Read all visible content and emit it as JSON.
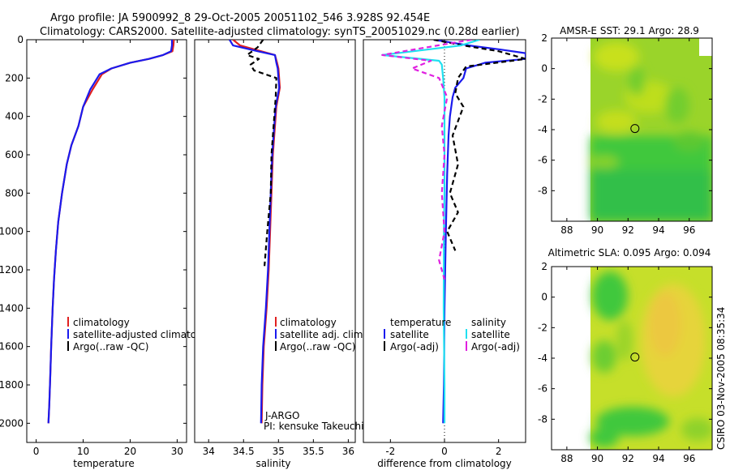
{
  "header": {
    "line1": "Argo profile: JA 5900992_8 29-Oct-2005 20051102_546 3.928S 92.454E",
    "line2": "Climatology: CARS2000. Satellite-adjusted climatology: synTS_20051029.nc (0.28d earlier)"
  },
  "side_label": "CSIRO 03-Nov-2005 08:35:34",
  "colors": {
    "red": "#e02020",
    "blue": "#1a1aee",
    "black": "#000000",
    "cyan": "#20e0f0",
    "magenta": "#e020e0"
  },
  "chart_data": [
    {
      "id": "temperature",
      "type": "line",
      "xlabel": "temperature",
      "xlim": [
        -2,
        32
      ],
      "ylim": [
        2100,
        0
      ],
      "xticks": [
        0,
        10,
        20,
        30
      ],
      "yticks": [
        0,
        200,
        400,
        600,
        800,
        1000,
        1200,
        1400,
        1600,
        1800,
        2000
      ],
      "legend": [
        "climatology",
        "satellite-adjusted climatology",
        "Argo(..raw -QC)"
      ],
      "series": [
        {
          "name": "climatology",
          "color": "red",
          "dash": "",
          "x": [
            29.3,
            29.2,
            29.0,
            27,
            24,
            20,
            16,
            14,
            13,
            12,
            10,
            9,
            7.5,
            6.5,
            5.5,
            4.7,
            4.2,
            3.8,
            3.5,
            3.2,
            3.0,
            2.8,
            2.6
          ],
          "y": [
            0,
            30,
            60,
            80,
            100,
            120,
            150,
            180,
            220,
            260,
            350,
            450,
            550,
            650,
            800,
            950,
            1100,
            1250,
            1400,
            1600,
            1750,
            1900,
            2000
          ]
        },
        {
          "name": "satellite-adjusted climatology",
          "color": "blue",
          "dash": "",
          "x": [
            28.9,
            28.9,
            28.7,
            27,
            24,
            20,
            16,
            13.5,
            12.5,
            11.5,
            10,
            9,
            7.5,
            6.5,
            5.5,
            4.7,
            4.2,
            3.8,
            3.5,
            3.2,
            3.0,
            2.8,
            2.6
          ],
          "y": [
            0,
            30,
            60,
            80,
            100,
            120,
            150,
            180,
            220,
            260,
            350,
            450,
            550,
            650,
            800,
            950,
            1100,
            1250,
            1400,
            1600,
            1750,
            1900,
            2000
          ]
        }
      ]
    },
    {
      "id": "salinity",
      "type": "line",
      "xlabel": "salinity",
      "xlim": [
        33.8,
        36.1
      ],
      "ylim": [
        2100,
        0
      ],
      "xticks": [
        34,
        34.5,
        35,
        35.5,
        36
      ],
      "legend": [
        "climatology",
        "satellite adj. clim.",
        "Argo(..raw -QC)"
      ],
      "annotation": [
        "J-ARGO",
        "PI: kensuke Takeuchi"
      ],
      "series": [
        {
          "name": "climatology",
          "color": "red",
          "dash": "",
          "x": [
            34.35,
            34.45,
            34.75,
            34.95,
            34.98,
            35.0,
            35.02,
            34.97,
            34.95,
            34.92,
            34.9,
            34.88,
            34.86,
            34.83,
            34.79,
            34.77,
            34.76
          ],
          "y": [
            0,
            30,
            60,
            80,
            120,
            150,
            250,
            350,
            450,
            600,
            800,
            1000,
            1200,
            1400,
            1600,
            1800,
            2000
          ]
        },
        {
          "name": "satellite adj. clim.",
          "color": "blue",
          "dash": "",
          "x": [
            34.3,
            34.35,
            34.7,
            34.95,
            34.97,
            34.99,
            35.01,
            34.96,
            34.94,
            34.91,
            34.89,
            34.87,
            34.85,
            34.82,
            34.78,
            34.76,
            34.75
          ],
          "y": [
            0,
            30,
            60,
            80,
            120,
            150,
            250,
            350,
            450,
            600,
            800,
            1000,
            1200,
            1400,
            1600,
            1800,
            2000
          ]
        },
        {
          "name": "Argo(..raw -QC)",
          "color": "black",
          "dash": "6,4",
          "x": [
            34.78,
            34.7,
            34.55,
            34.72,
            34.6,
            34.65,
            34.97,
            34.96,
            34.93,
            34.9,
            34.89,
            34.84,
            34.8
          ],
          "y": [
            0,
            40,
            80,
            100,
            130,
            160,
            200,
            300,
            450,
            600,
            800,
            1000,
            1180
          ]
        }
      ]
    },
    {
      "id": "difference",
      "type": "line",
      "xlabel": "difference from climatology",
      "xlim": [
        -3,
        3
      ],
      "ylim": [
        2100,
        0
      ],
      "xticks": [
        -2,
        0,
        2
      ],
      "legend_temperature": {
        "title": "temperature",
        "items": [
          "satellite",
          "Argo(-adj)"
        ]
      },
      "legend_salinity": {
        "title": "salinity",
        "items": [
          "satellite",
          "Argo(-adj)"
        ]
      },
      "series": [
        {
          "name": "temperature satellite",
          "color": "blue",
          "dash": "",
          "x": [
            -0.4,
            0.9,
            2.0,
            3.0,
            3.0,
            1.5,
            0.8,
            0.7,
            0.4,
            0.3,
            0.2,
            0.15,
            0.1,
            0.05,
            0.0,
            -0.02,
            -0.05
          ],
          "y": [
            0,
            30,
            50,
            70,
            100,
            120,
            150,
            200,
            250,
            300,
            400,
            500,
            700,
            1000,
            1400,
            1800,
            2000
          ]
        },
        {
          "name": "temperature Argo(-adj)",
          "color": "black",
          "dash": "6,4",
          "x": [
            -0.4,
            0.7,
            2.0,
            3.0,
            2.5,
            0.8,
            0.5,
            0.4,
            0.7,
            0.3,
            0.5,
            0.2,
            0.5,
            0.1,
            0.4
          ],
          "y": [
            0,
            30,
            60,
            100,
            110,
            140,
            200,
            280,
            350,
            500,
            650,
            800,
            900,
            1000,
            1100
          ]
        },
        {
          "name": "salinity satellite",
          "color": "cyan",
          "dash": "",
          "x": [
            1.3,
            0.6,
            -2.3,
            -0.2,
            -0.1,
            -0.05,
            0.0,
            0.0,
            0.0,
            -0.02,
            -0.03,
            0.0,
            0.0
          ],
          "y": [
            0,
            30,
            80,
            110,
            130,
            200,
            300,
            500,
            800,
            1000,
            1400,
            1800,
            2000
          ]
        },
        {
          "name": "salinity Argo(-adj)",
          "color": "magenta",
          "dash": "6,4",
          "x": [
            1.0,
            -1.5,
            -2.3,
            -0.5,
            -1.2,
            -0.2,
            0.1,
            -0.1,
            0.0,
            -0.1,
            0.0,
            -0.2,
            0.0
          ],
          "y": [
            0,
            60,
            80,
            110,
            150,
            200,
            300,
            450,
            600,
            800,
            1000,
            1150,
            1250
          ]
        }
      ]
    },
    {
      "id": "sst-map",
      "type": "heatmap",
      "title": "AMSR-E SST: 29.1 Argo: 28.9",
      "xlim": [
        87,
        97.5
      ],
      "ylim": [
        -10,
        2
      ],
      "xticks": [
        88,
        90,
        92,
        94,
        96
      ],
      "yticks": [
        -8,
        -6,
        -4,
        -2,
        0,
        2
      ],
      "marker": {
        "x": 92.454,
        "y": -3.928
      }
    },
    {
      "id": "sla-map",
      "type": "heatmap",
      "title": "Altimetric SLA: 0.095 Argo: 0.094",
      "xlim": [
        87,
        97.5
      ],
      "ylim": [
        -10,
        2
      ],
      "xticks": [
        88,
        90,
        92,
        94,
        96
      ],
      "yticks": [
        -8,
        -6,
        -4,
        -2,
        0,
        2
      ],
      "marker": {
        "x": 92.454,
        "y": -3.928
      }
    }
  ]
}
